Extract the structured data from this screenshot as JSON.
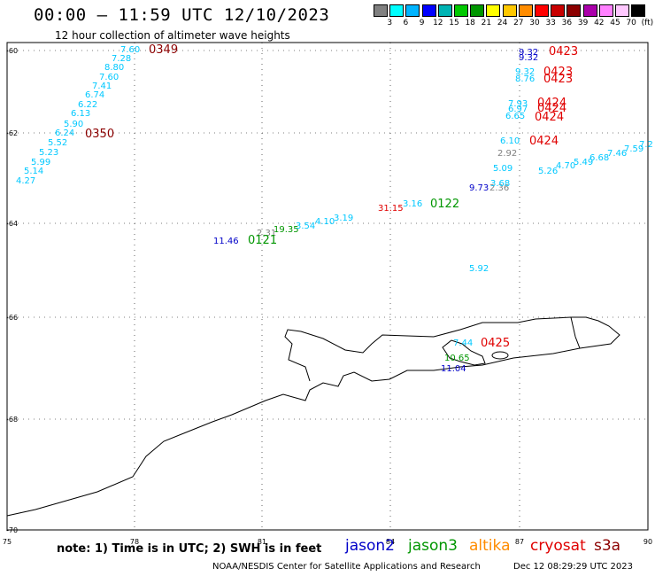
{
  "header": {
    "title": "00:00 – 11:59 UTC 12/10/2023",
    "subtitle": "12 hour collection of altimeter wave heights"
  },
  "color_scale": {
    "colors": [
      "#808080",
      "#00ffff",
      "#00b4ff",
      "#0000ff",
      "#00b4b4",
      "#00c800",
      "#009600",
      "#ffff00",
      "#ffc800",
      "#ff8c00",
      "#ff0000",
      "#c80000",
      "#8c0000",
      "#aa00aa",
      "#ff80ff",
      "#ffc8ff",
      "#000000"
    ],
    "labels": [
      "3",
      "6",
      "9",
      "12",
      "15",
      "18",
      "21",
      "24",
      "27",
      "30",
      "33",
      "36",
      "39",
      "42",
      "45",
      "70",
      "(ft)"
    ]
  },
  "axes": {
    "x_ticks": [
      "75",
      "78",
      "81",
      "84",
      "87",
      "90"
    ],
    "y_ticks": [
      "-60",
      "-62",
      "-64",
      "-66",
      "-68",
      "-70"
    ]
  },
  "swh_labels": [
    {
      "text": "7.60",
      "color": "#00c8ff"
    },
    {
      "text": "7.28",
      "color": "#00c8ff"
    },
    {
      "text": "8.80",
      "color": "#00c8ff"
    },
    {
      "text": "7.60",
      "color": "#00c8ff"
    },
    {
      "text": "7.41",
      "color": "#00c8ff"
    },
    {
      "text": "6.74",
      "color": "#00c8ff"
    },
    {
      "text": "6.22",
      "color": "#00c8ff"
    },
    {
      "text": "6.13",
      "color": "#00c8ff"
    },
    {
      "text": "5.90",
      "color": "#00c8ff"
    },
    {
      "text": "6.24",
      "color": "#00c8ff"
    },
    {
      "text": "5.52",
      "color": "#00c8ff"
    },
    {
      "text": "5.23",
      "color": "#00c8ff"
    },
    {
      "text": "5.99",
      "color": "#00c8ff"
    },
    {
      "text": "5.14",
      "color": "#00c8ff"
    },
    {
      "text": "4.27",
      "color": "#00c8ff"
    },
    {
      "text": "11.46",
      "color": "#0000c8"
    },
    {
      "text": "2.31",
      "color": "#808080"
    },
    {
      "text": "19.35",
      "color": "#009600"
    },
    {
      "text": "3.54",
      "color": "#00c8ff"
    },
    {
      "text": "4.10",
      "color": "#00c8ff"
    },
    {
      "text": "3.19",
      "color": "#00c8ff"
    },
    {
      "text": "31.15",
      "color": "#e00000"
    },
    {
      "text": "3.16",
      "color": "#00c8ff"
    },
    {
      "text": "9.73",
      "color": "#0000c8"
    },
    {
      "text": "2.36",
      "color": "#808080"
    },
    {
      "text": "3.68",
      "color": "#00c8ff"
    },
    {
      "text": "5.09",
      "color": "#00c8ff"
    },
    {
      "text": "2.92",
      "color": "#808080"
    },
    {
      "text": "6.10",
      "color": "#00c8ff"
    },
    {
      "text": "9.32",
      "color": "#0000c8"
    },
    {
      "text": "9.32",
      "color": "#0000c8"
    },
    {
      "text": "9.32",
      "color": "#00c8ff"
    },
    {
      "text": "8.76",
      "color": "#00c8ff"
    },
    {
      "text": "7.93",
      "color": "#00c8ff"
    },
    {
      "text": "6.97",
      "color": "#00c8ff"
    },
    {
      "text": "6.65",
      "color": "#00c8ff"
    },
    {
      "text": "5.26",
      "color": "#00c8ff"
    },
    {
      "text": "4.70",
      "color": "#00c8ff"
    },
    {
      "text": "5.49",
      "color": "#00c8ff"
    },
    {
      "text": "6.68",
      "color": "#00c8ff"
    },
    {
      "text": "7.46",
      "color": "#00c8ff"
    },
    {
      "text": "7.59",
      "color": "#00c8ff"
    },
    {
      "text": "7.2",
      "color": "#00c8ff"
    },
    {
      "text": "5.92",
      "color": "#00c8ff"
    },
    {
      "text": "7.44",
      "color": "#00c8ff"
    },
    {
      "text": "10.65",
      "color": "#009600"
    },
    {
      "text": "11.04",
      "color": "#0000c8"
    }
  ],
  "time_labels": [
    {
      "text": "0349",
      "color": "#8c0000"
    },
    {
      "text": "0350",
      "color": "#8c0000"
    },
    {
      "text": "0121",
      "color": "#009600"
    },
    {
      "text": "0122",
      "color": "#009600"
    },
    {
      "text": "0423",
      "color": "#e00000"
    },
    {
      "text": "0423",
      "color": "#e00000"
    },
    {
      "text": "0423",
      "color": "#e00000"
    },
    {
      "text": "0424",
      "color": "#e00000"
    },
    {
      "text": "0424",
      "color": "#e00000"
    },
    {
      "text": "0424",
      "color": "#e00000"
    },
    {
      "text": "0424",
      "color": "#e00000"
    },
    {
      "text": "0425",
      "color": "#e00000"
    }
  ],
  "footer": {
    "note": "note: 1) Time is in UTC; 2) SWH is in feet",
    "satellites": [
      {
        "name": "jason2",
        "color": "#0000c8"
      },
      {
        "name": "jason3",
        "color": "#009600"
      },
      {
        "name": "altika",
        "color": "#ff8c00"
      },
      {
        "name": "cryosat",
        "color": "#e00000"
      },
      {
        "name": "s3a",
        "color": "#8c0000"
      }
    ],
    "credit": "NOAA/NESDIS Center for Satellite Applications and Research",
    "date": "Dec 12 08:29:29 UTC 2023"
  }
}
